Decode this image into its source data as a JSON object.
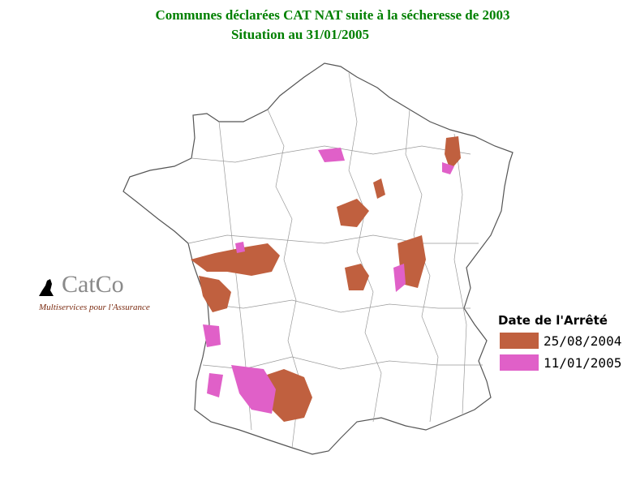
{
  "header": {
    "title": "Communes déclarées CAT NAT suite à la sécheresse de  2003",
    "subtitle": "Situation au 31/01/2005"
  },
  "logo": {
    "name": "CatCo",
    "tagline": "Multiservices pour l'Assurance"
  },
  "legend": {
    "title": "Date de l'Arrêté",
    "items": [
      {
        "label": "25/08/2004",
        "color": "#c0603f"
      },
      {
        "label": "11/01/2005",
        "color": "#e060c8"
      }
    ]
  }
}
